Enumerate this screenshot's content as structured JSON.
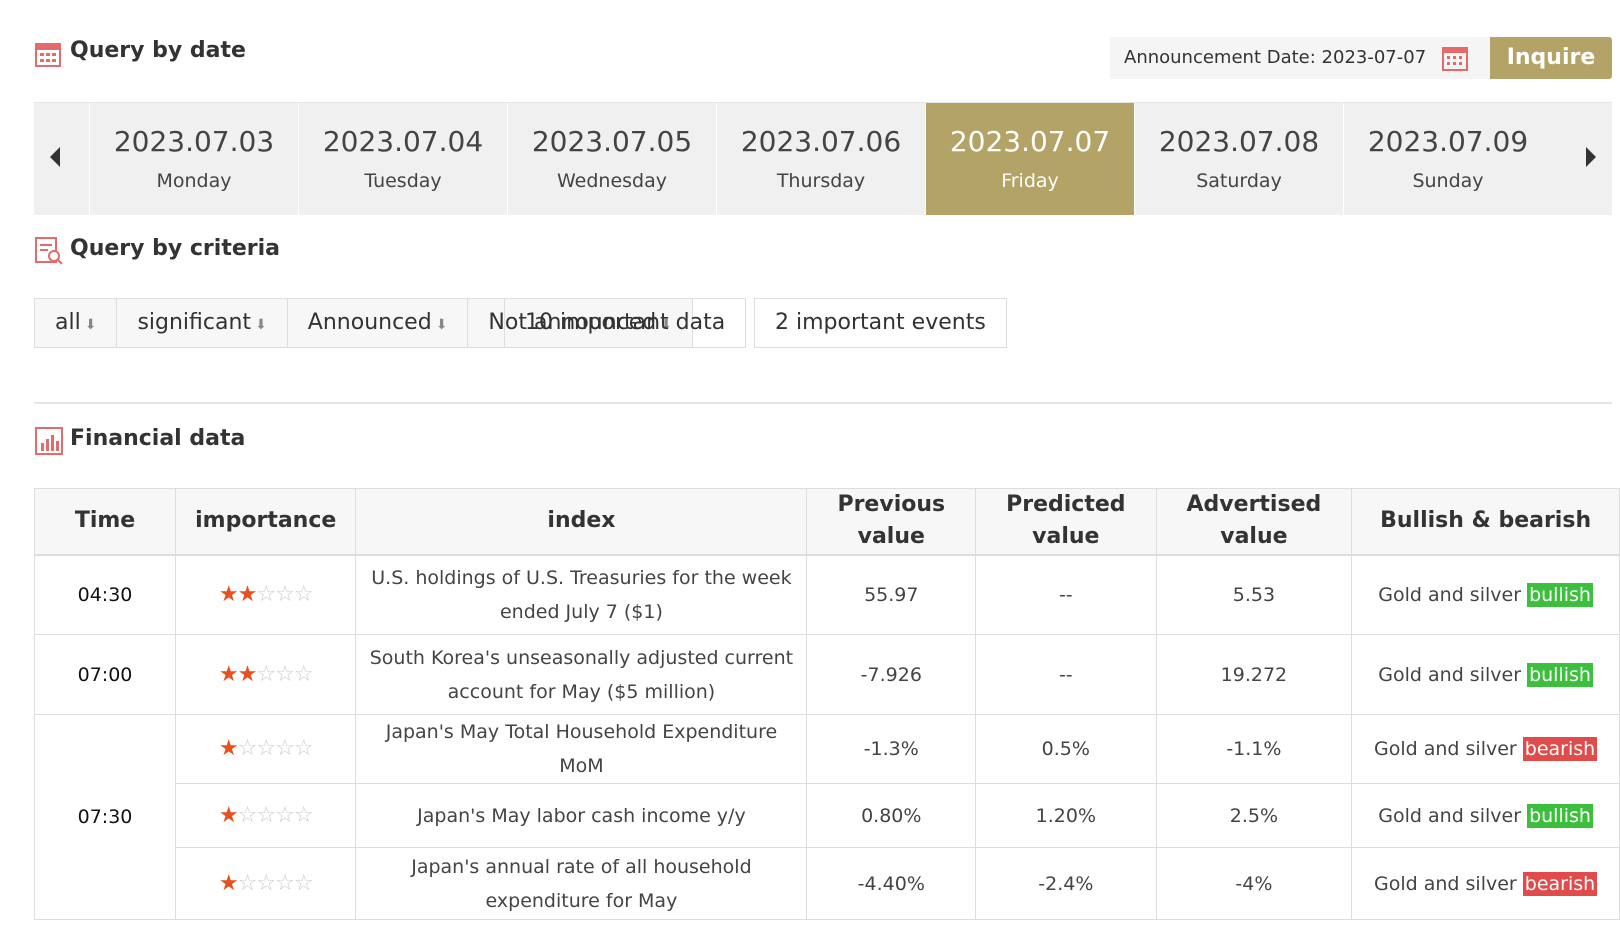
{
  "query_by_date": {
    "title": "Query by date",
    "announcement_label": "Announcement Date:",
    "announcement_date": "2023-07-07",
    "button": "Inquire"
  },
  "dates": [
    {
      "date": "2023.07.03",
      "day": "Monday",
      "active": false
    },
    {
      "date": "2023.07.04",
      "day": "Tuesday",
      "active": false
    },
    {
      "date": "2023.07.05",
      "day": "Wednesday",
      "active": false
    },
    {
      "date": "2023.07.06",
      "day": "Thursday",
      "active": false
    },
    {
      "date": "2023.07.07",
      "day": "Friday",
      "active": true
    },
    {
      "date": "2023.07.08",
      "day": "Saturday",
      "active": false
    },
    {
      "date": "2023.07.09",
      "day": "Sunday",
      "active": false
    }
  ],
  "query_by_criteria": {
    "title": "Query by criteria",
    "filters": [
      "all",
      "significant",
      "Announced",
      "Not announced"
    ],
    "important_data": "10 important data",
    "important_events": "2 important events"
  },
  "financial_data": {
    "title": "Financial data",
    "importance_max": 5,
    "headers": [
      "Time",
      "importance",
      "index",
      "Previous value",
      "Predicted value",
      "Advertised value",
      "Bullish & bearish"
    ],
    "groups": [
      {
        "time": "04:30",
        "events": [
          {
            "importance": 2,
            "index": "U.S. holdings of U.S. Treasuries for the week ended July 7 ($1)",
            "previous": "55.97",
            "predicted": "--",
            "advertised": "5.53",
            "signal_text": "Gold and silver",
            "signal": "bullish",
            "signal_color": "#3cbf3c"
          }
        ]
      },
      {
        "time": "07:00",
        "events": [
          {
            "importance": 2,
            "index": "South Korea's unseasonally adjusted current account for May ($5 million)",
            "previous": "-7.926",
            "predicted": "--",
            "advertised": "19.272",
            "signal_text": "Gold and silver",
            "signal": "bullish",
            "signal_color": "#3cbf3c"
          }
        ]
      },
      {
        "time": "07:30",
        "events": [
          {
            "importance": 1,
            "index": "Japan's May Total Household Expenditure MoM",
            "previous": "-1.3%",
            "predicted": "0.5%",
            "advertised": "-1.1%",
            "signal_text": "Gold and silver",
            "signal": "bearish",
            "signal_color": "#e04c4c"
          },
          {
            "importance": 1,
            "index": "Japan's May labor cash income y/y",
            "previous": "0.80%",
            "predicted": "1.20%",
            "advertised": "2.5%",
            "signal_text": "Gold and silver",
            "signal": "bullish",
            "signal_color": "#3cbf3c"
          },
          {
            "importance": 1,
            "index": "Japan's annual rate of all household expenditure for May",
            "previous": "-4.40%",
            "predicted": "-2.4%",
            "advertised": "-4%",
            "signal_text": "Gold and silver",
            "signal": "bearish",
            "signal_color": "#e04c4c"
          }
        ]
      }
    ]
  }
}
